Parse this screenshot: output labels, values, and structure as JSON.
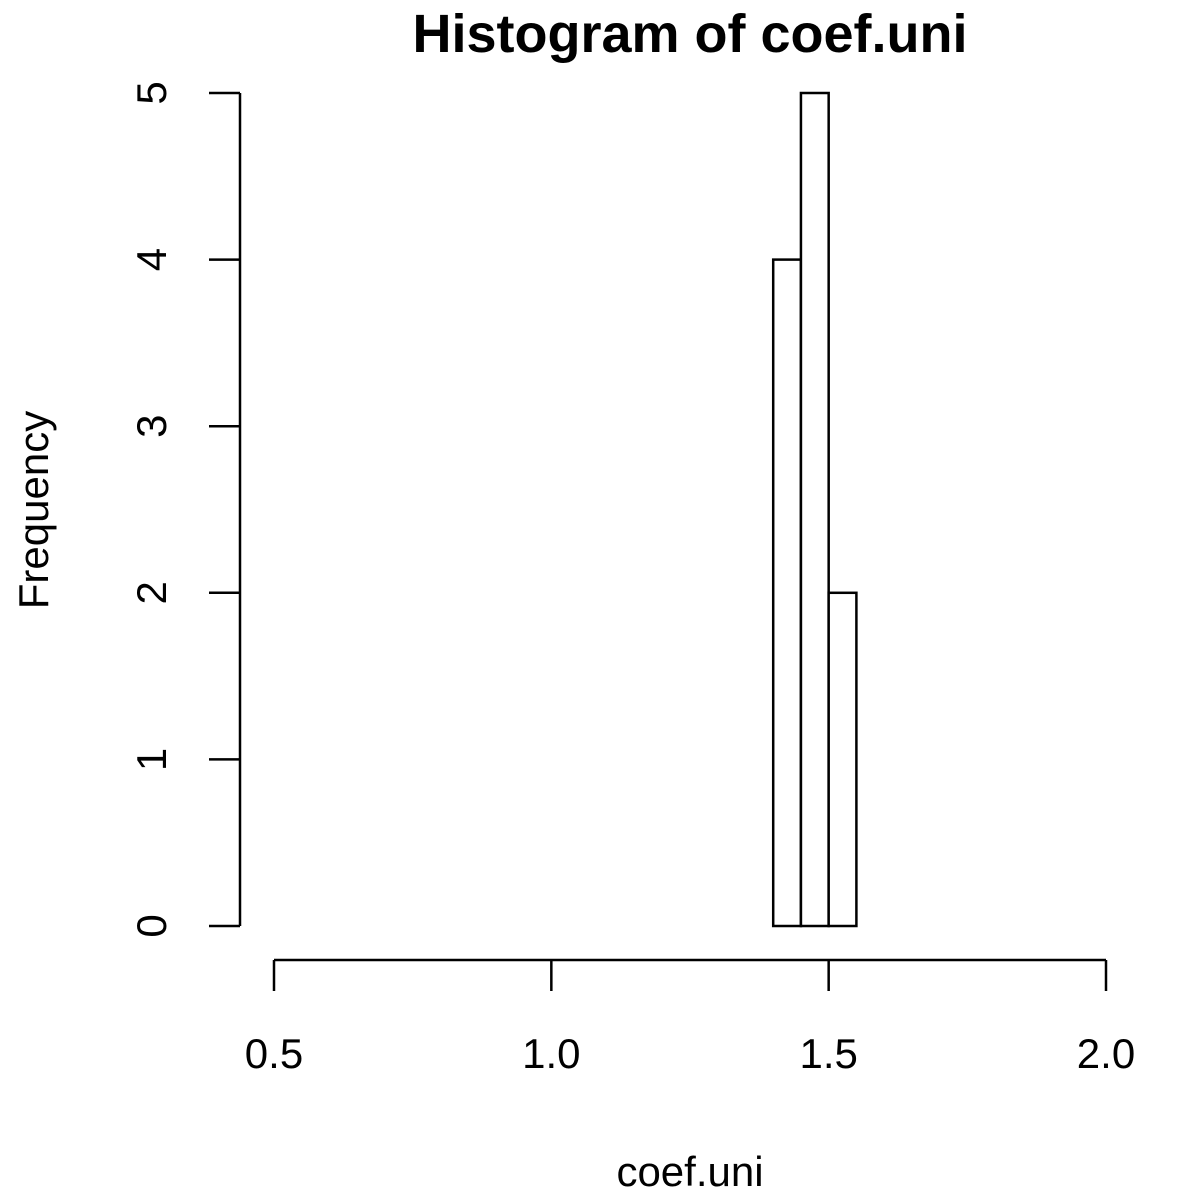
{
  "chart_data": {
    "type": "bar",
    "subtype": "histogram",
    "title": "Histogram of coef.uni",
    "xlabel": "coef.uni",
    "ylabel": "Frequency",
    "xlim": [
      0.5,
      2.0
    ],
    "ylim": [
      0,
      5
    ],
    "x_ticks": [
      "0.5",
      "1.0",
      "1.5",
      "2.0"
    ],
    "y_ticks": [
      "0",
      "1",
      "2",
      "3",
      "4",
      "5"
    ],
    "bins": [
      {
        "start": 1.4,
        "end": 1.45,
        "count": 4
      },
      {
        "start": 1.45,
        "end": 1.5,
        "count": 5
      },
      {
        "start": 1.5,
        "end": 1.55,
        "count": 2
      }
    ],
    "bar_fill": "#ffffff",
    "bar_stroke": "#000000",
    "grid": false,
    "legend": "none"
  }
}
